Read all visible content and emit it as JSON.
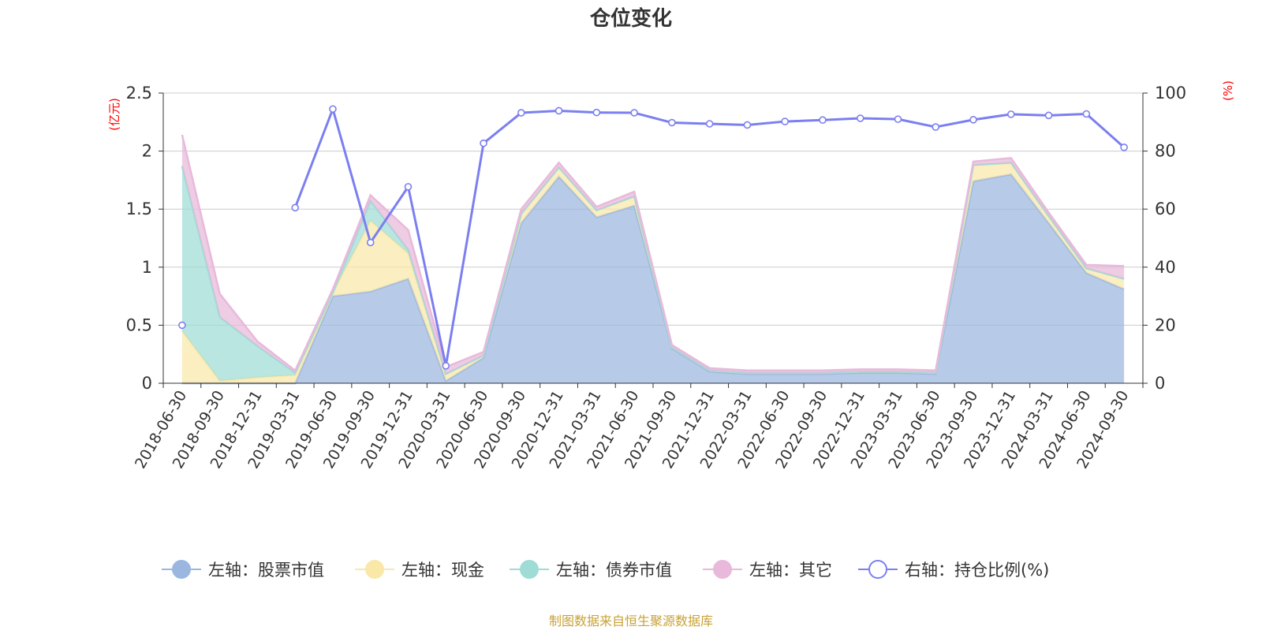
{
  "chart_data": {
    "type": "area",
    "title": "仓位变化",
    "left_unit": "(亿元)",
    "right_unit": "(%)",
    "categories": [
      "2018-06-30",
      "2018-09-30",
      "2018-12-31",
      "2019-03-31",
      "2019-06-30",
      "2019-09-30",
      "2019-12-31",
      "2020-03-31",
      "2020-06-30",
      "2020-09-30",
      "2020-12-31",
      "2021-03-31",
      "2021-06-30",
      "2021-09-30",
      "2021-12-31",
      "2022-03-31",
      "2022-06-30",
      "2022-09-30",
      "2022-12-31",
      "2023-03-31",
      "2023-06-30",
      "2023-09-30",
      "2023-12-31",
      "2024-03-31",
      "2024-06-30",
      "2024-09-30"
    ],
    "left_ylim": [
      0,
      2.5
    ],
    "left_ticks": [
      "0",
      "0.5",
      "1",
      "1.5",
      "2",
      "2.5"
    ],
    "right_ylim": [
      0,
      100
    ],
    "right_ticks": [
      "0",
      "20",
      "40",
      "60",
      "80",
      "100"
    ],
    "stacked_series": [
      {
        "name": "左轴：股票市值",
        "color": "#9bb7e0",
        "values": [
          0,
          0,
          0,
          0,
          0.75,
          0.79,
          0.9,
          0.02,
          0.22,
          1.38,
          1.78,
          1.43,
          1.53,
          0.3,
          0.1,
          0.08,
          0.08,
          0.08,
          0.09,
          0.09,
          0.08,
          1.74,
          1.8,
          1.38,
          0.95,
          0.81
        ]
      },
      {
        "name": "左轴：现金",
        "color": "#f9e8a8",
        "values": [
          0.45,
          0.02,
          0.05,
          0.07,
          0.03,
          0.61,
          0.22,
          0.06,
          0.02,
          0.08,
          0.08,
          0.06,
          0.08,
          0.01,
          0.01,
          0.01,
          0.01,
          0.01,
          0.01,
          0.01,
          0.01,
          0.14,
          0.1,
          0.06,
          0.04,
          0.09
        ]
      },
      {
        "name": "左轴：债券市值",
        "color": "#9fdcd6",
        "values": [
          1.42,
          0.55,
          0.27,
          0.02,
          0,
          0.17,
          0.03,
          0,
          0,
          0,
          0,
          0,
          0,
          0,
          0,
          0,
          0,
          0,
          0,
          0,
          0,
          0,
          0,
          0,
          0,
          0
        ]
      },
      {
        "name": "左轴：其它",
        "color": "#e8b9da",
        "values": [
          0.27,
          0.2,
          0.04,
          0.02,
          0.03,
          0.05,
          0.17,
          0.06,
          0.03,
          0.04,
          0.04,
          0.03,
          0.04,
          0.02,
          0.02,
          0.02,
          0.02,
          0.02,
          0.02,
          0.02,
          0.02,
          0.03,
          0.04,
          0.03,
          0.03,
          0.11
        ]
      }
    ],
    "line_series": {
      "name": "右轴：持仓比例(%)",
      "color": "#7b7ff0",
      "values": [
        20,
        null,
        null,
        60.5,
        94.5,
        48.5,
        67.7,
        6.0,
        82.7,
        93.2,
        93.9,
        93.3,
        93.2,
        89.8,
        89.4,
        89.0,
        90.2,
        90.7,
        91.3,
        91.0,
        88.3,
        90.8,
        92.7,
        92.3,
        92.8,
        81.3
      ]
    },
    "source": "制图数据来自恒生聚源数据库"
  }
}
